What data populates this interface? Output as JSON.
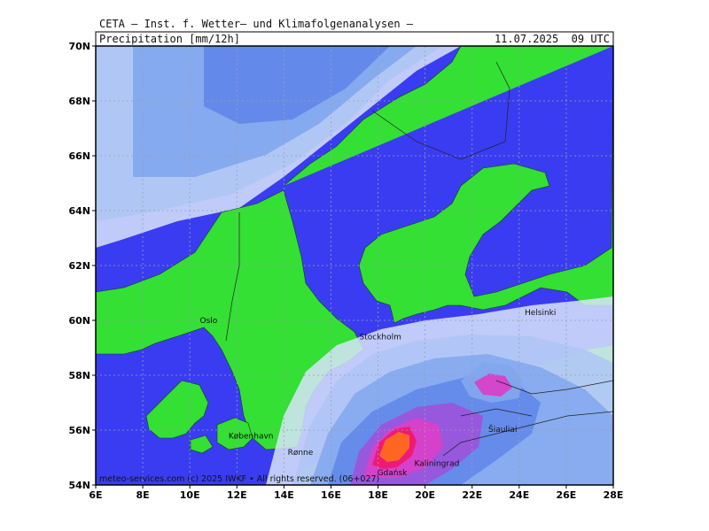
{
  "header": {
    "title": "CETA — Inst. f. Wetter— und Klimafolgenanalysen —",
    "parameter": "Precipitation [mm/12h]",
    "valid_time": "11.07.2025  09 UTC"
  },
  "map": {
    "lon_range": [
      6,
      28
    ],
    "lat_range": [
      54,
      70
    ],
    "lat_ticks": [
      "54N",
      "56N",
      "58N",
      "60N",
      "62N",
      "64N",
      "66N",
      "68N",
      "70N"
    ],
    "lon_ticks": [
      "6E",
      "8E",
      "10E",
      "12E",
      "14E",
      "16E",
      "18E",
      "20E",
      "22E",
      "24E",
      "26E",
      "28E"
    ],
    "cities": [
      {
        "name": "Oslo",
        "lon": 10.8,
        "lat": 59.9
      },
      {
        "name": "Stockholm",
        "lon": 18.1,
        "lat": 59.3
      },
      {
        "name": "Helsinki",
        "lon": 24.9,
        "lat": 60.2
      },
      {
        "name": "København",
        "lon": 12.6,
        "lat": 55.7
      },
      {
        "name": "Rønne",
        "lon": 14.7,
        "lat": 55.1
      },
      {
        "name": "Kaliningrad",
        "lon": 20.5,
        "lat": 54.7
      },
      {
        "name": "Gdańsk",
        "lon": 18.6,
        "lat": 54.35
      },
      {
        "name": "Šiauliai",
        "lon": 23.3,
        "lat": 55.93
      }
    ],
    "credit": "meteo-services.com (c) 2025 IWKF • All rights reserved. (06+027)",
    "colors": {
      "land": "#33e033",
      "sea": "#3a3cf2",
      "precip_light": "#d8e4fb",
      "precip_1": "#aec6f5",
      "precip_2": "#82a6ee",
      "precip_3": "#5f86ea",
      "precip_4": "#9a55dd",
      "precip_5": "#d840c8",
      "precip_6": "#f01870",
      "precip_max": "#ff6a20"
    }
  }
}
